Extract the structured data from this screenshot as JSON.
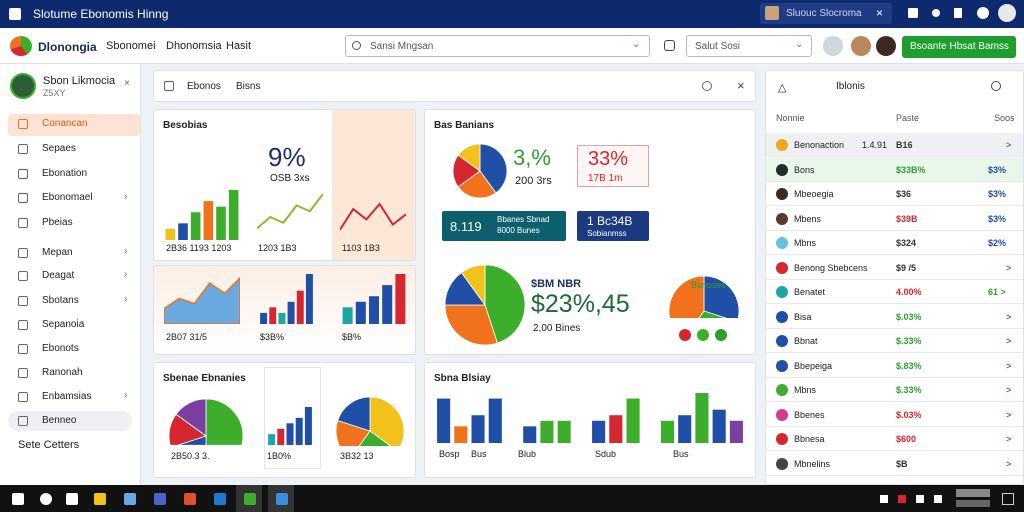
{
  "window": {
    "title": "Slotume Ebonomis Hinng",
    "search": "Sluouc Slocroma"
  },
  "header": {
    "brand": "Dlonongia",
    "nav": [
      "Sbonomei",
      "Dhonomsia",
      "Hasit"
    ],
    "search": "Sansi Mngsan",
    "select": "Salut Sosi",
    "button": "Bsoante Hbsat Bamss"
  },
  "sidebar": {
    "user": "Sbon Likmocia",
    "sub": "Z5XY",
    "items": [
      "Conancan",
      "Sepaes",
      "Ebonation",
      "Ebonomael",
      "Pbeias",
      "Mepan",
      "Deagat",
      "Sbotans",
      "Sepanoia",
      "Ebonots",
      "Ranonah",
      "Enbamsias",
      "Benneo"
    ],
    "footer": "Sete Cetters"
  },
  "toolbar": {
    "tabs": [
      "Ebonos",
      "Bisns"
    ]
  },
  "panels": {
    "a": {
      "title": "Besobias",
      "value": "9%",
      "sub": "OSB 3xs",
      "labels": [
        "2B36 1193 1203",
        "1203 1B3",
        "1103 1B3"
      ]
    },
    "b": {
      "labels": [
        "2B07 31/5",
        "$3B%",
        "$B%"
      ]
    },
    "c": {
      "title": "Bas Banians",
      "value": "3,%",
      "sub": "200 3rs",
      "box_value": "33%",
      "box_sub": "17B 1m",
      "btn1_value": "8.119",
      "btn1_text": [
        "Bbanes Sbnad",
        "8000 Bunes"
      ],
      "btn2_value": "1 Bc34B",
      "btn2_text": "Sobianmss",
      "big_label": "$BM NBR",
      "big_value": "$23%,45",
      "big_sub": "2,00 Bines",
      "side_label": "Banoses"
    },
    "d": {
      "title": "Sbenae Ebnanies",
      "labels": [
        "2B50.3 3.",
        "1B0%",
        "3B32 13"
      ]
    },
    "e": {
      "title": "Sbna Blsiay",
      "labels": [
        "Bosp",
        "Bus",
        "Blub",
        "Sdub",
        "Bus"
      ]
    }
  },
  "right": {
    "title": "Iblonis",
    "headers": [
      "Nonnie",
      "Paste",
      "Soos"
    ],
    "rows": [
      {
        "name": "Benonaction",
        "extra": "1.4.91",
        "paste": "B16",
        "soos": ">",
        "color": "#333333"
      },
      {
        "name": "Bons",
        "paste": "$33B%",
        "soos": "$3%",
        "color": "#2e9e2e"
      },
      {
        "name": "Mbeoegia",
        "paste": "$36",
        "soos": "$3%",
        "color": "#333333"
      },
      {
        "name": "Mbens",
        "paste": "$39B",
        "soos": "$3%",
        "color": "#d6262f"
      },
      {
        "name": "Mbns",
        "paste": "$324",
        "soos": "$2%",
        "color": "#333333"
      },
      {
        "name": "Benong Sbebcens",
        "paste": "$9 /5",
        "soos": ">",
        "color": "#333333"
      },
      {
        "name": "Benatet",
        "paste": "4.00%",
        "soos": "61 >",
        "color": "#d6262f"
      },
      {
        "name": "Bisa",
        "paste": "$.03%",
        "soos": ">",
        "color": "#2e9e2e"
      },
      {
        "name": "Bbnat",
        "paste": "$.33%",
        "soos": ">",
        "color": "#2e9e2e"
      },
      {
        "name": "Bbepeiga",
        "paste": "$.83%",
        "soos": ">",
        "color": "#2e9e2e"
      },
      {
        "name": "Mbns",
        "paste": "$.33%",
        "soos": ">",
        "color": "#2e9e2e"
      },
      {
        "name": "Bbenes",
        "paste": "$.03%",
        "soos": ">",
        "color": "#d6262f"
      },
      {
        "name": "Bbnesa",
        "paste": "$600",
        "soos": ">",
        "color": "#d6262f"
      },
      {
        "name": "Mbnelins",
        "paste": "$B",
        "soos": ">",
        "color": "#333333"
      }
    ]
  },
  "charts": [
    {
      "type": "bar",
      "values": [
        2,
        3,
        5,
        7,
        6,
        9
      ],
      "colors": [
        "#f2c21b",
        "#1f4fa6",
        "#3cae2c",
        "#f2711c",
        "#3cae2c",
        "#3cae2c"
      ]
    },
    {
      "type": "line",
      "values": [
        2,
        4,
        3,
        6,
        5,
        8
      ],
      "colors": [
        "#8dbb2c"
      ]
    },
    {
      "type": "line",
      "values": [
        2,
        6,
        4,
        7,
        3,
        5
      ],
      "colors": [
        "#d6262f"
      ]
    },
    {
      "type": "area",
      "values": [
        3,
        5,
        4,
        8,
        6,
        9
      ],
      "colors": [
        "#6aa9e0"
      ]
    },
    {
      "type": "bar",
      "values": [
        2,
        3,
        2,
        4,
        6,
        9
      ],
      "colors": [
        "#1f4fa6",
        "#d6262f",
        "#1ea5a5",
        "#1f4fa6",
        "#d6262f",
        "#1f4fa6"
      ]
    },
    {
      "type": "bar",
      "values": [
        3,
        4,
        5,
        7,
        9
      ],
      "colors": [
        "#1ea5a5",
        "#1f4fa6",
        "#1f4fa6",
        "#1f4fa6",
        "#d6262f"
      ]
    },
    {
      "type": "pie",
      "values": [
        40,
        25,
        20,
        15
      ],
      "colors": [
        "#1f4fa6",
        "#f2711c",
        "#d6262f",
        "#f2c21b"
      ]
    },
    {
      "type": "pie",
      "values": [
        45,
        30,
        15,
        10
      ],
      "colors": [
        "#3cae2c",
        "#f2711c",
        "#1f4fa6",
        "#f2c21b"
      ]
    },
    {
      "type": "pie",
      "values": [
        30,
        30,
        40
      ],
      "colors": [
        "#1f4fa6",
        "#3cae2c",
        "#f2711c"
      ]
    },
    {
      "type": "pie",
      "values": [
        50,
        20,
        15,
        15
      ],
      "colors": [
        "#3cae2c",
        "#1f4fa6",
        "#d6262f",
        "#7a3fa0"
      ]
    },
    {
      "type": "bar",
      "values": [
        2,
        3,
        4,
        5,
        7
      ],
      "colors": [
        "#1ea5a5",
        "#d6262f",
        "#1f4fa6",
        "#1f4fa6",
        "#1f4fa6"
      ]
    },
    {
      "type": "pie",
      "values": [
        35,
        25,
        20,
        20
      ],
      "colors": [
        "#f2c21b",
        "#3cae2c",
        "#f2711c",
        "#1f4fa6"
      ]
    },
    {
      "type": "bar",
      "values": [
        8,
        3,
        5,
        8,
        0,
        3,
        4,
        4,
        0,
        4,
        5,
        8,
        0,
        4,
        5,
        9,
        6,
        4
      ],
      "colors": [
        "#1f4fa6",
        "#f2711c",
        "#1f4fa6",
        "#1f4fa6",
        "#ffffff",
        "#1f4fa6",
        "#3cae2c",
        "#3cae2c",
        "#ffffff",
        "#1f4fa6",
        "#d6262f",
        "#3cae2c",
        "#ffffff",
        "#3cae2c",
        "#1f4fa6",
        "#3cae2c",
        "#1f4fa6",
        "#7a3fa0"
      ]
    }
  ]
}
